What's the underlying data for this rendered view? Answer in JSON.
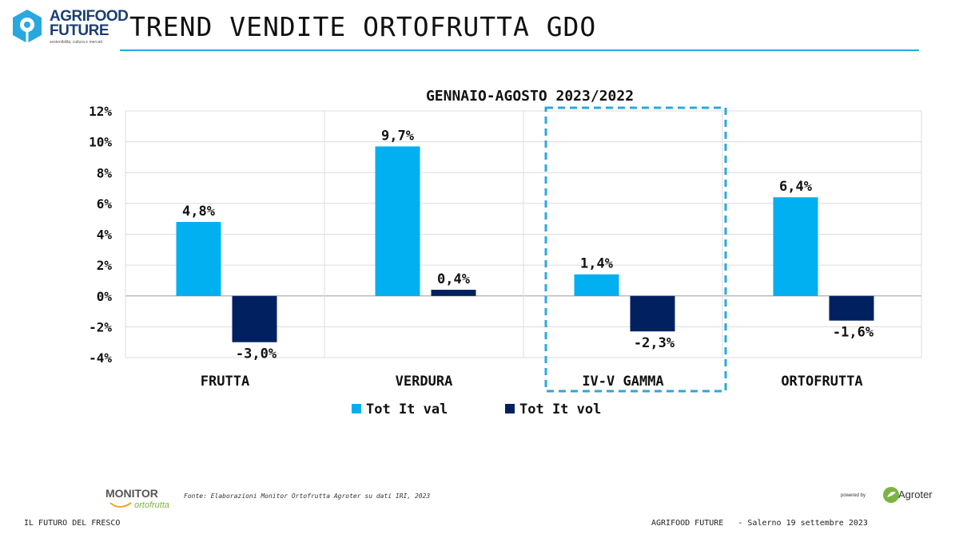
{
  "header": {
    "logo_line1": "AGRIFOOD",
    "logo_line2": "FUTURE",
    "logo_tagline": "sostenibilità, cultura e mercati",
    "title": "TREND VENDITE ORTOFRUTTA GDO"
  },
  "chart_data": {
    "type": "bar",
    "title": "GENNAIO-AGOSTO 2023/2022",
    "categories": [
      "FRUTTA",
      "VERDURA",
      "IV-V GAMMA",
      "ORTOFRUTTA"
    ],
    "series": [
      {
        "name": "Tot It val",
        "color": "#00b0f0",
        "values": [
          4.8,
          9.7,
          1.4,
          6.4
        ],
        "labels": [
          "4,8%",
          "9,7%",
          "1,4%",
          "6,4%"
        ]
      },
      {
        "name": "Tot It vol",
        "color": "#002060",
        "values": [
          -3.0,
          0.4,
          -2.3,
          -1.6
        ],
        "labels": [
          "-3,0%",
          "0,4%",
          "-2,3%",
          "-1,6%"
        ]
      }
    ],
    "ylim": [
      -4,
      12
    ],
    "yticks": [
      -4,
      -2,
      0,
      2,
      4,
      6,
      8,
      10,
      12
    ],
    "ytick_labels": [
      "-4%",
      "-2%",
      "0%",
      "2%",
      "4%",
      "6%",
      "8%",
      "10%",
      "12%"
    ],
    "highlight_category": "IV-V GAMMA",
    "highlight_color": "#29a8e0",
    "legend_position": "bottom",
    "grid": true
  },
  "footer": {
    "source": "Fonte: Elaborazioni Monitor Ortofrutta Agroter su dati IRI, 2023",
    "monitor_logo_line1": "MONITOR",
    "monitor_logo_line2": "ortofrutta",
    "powered_by": "powered by",
    "agroter": "Agroter",
    "left": "IL FUTURO DEL FRESCO",
    "right": "AGRIFOOD FUTURE   - Salerno 19 settembre 2023"
  }
}
